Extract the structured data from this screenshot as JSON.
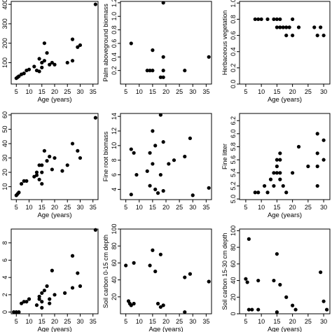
{
  "chart_data": [
    {
      "type": "scatter",
      "ylabel": "",
      "xlabel": "Age (years)",
      "xlim": [
        3,
        37
      ],
      "ylim": [
        -10,
        415
      ],
      "xticks": [
        5,
        10,
        15,
        20,
        25,
        30,
        35
      ],
      "yticks": [
        100,
        200,
        300,
        400
      ],
      "points": [
        [
          5,
          20
        ],
        [
          5.5,
          25
        ],
        [
          6,
          30
        ],
        [
          7,
          40
        ],
        [
          8,
          45
        ],
        [
          9,
          60
        ],
        [
          10,
          65
        ],
        [
          12,
          80
        ],
        [
          13,
          60
        ],
        [
          14,
          120
        ],
        [
          14,
          55
        ],
        [
          15,
          100
        ],
        [
          15,
          75
        ],
        [
          16,
          110
        ],
        [
          16,
          200
        ],
        [
          17,
          150
        ],
        [
          18,
          90
        ],
        [
          19,
          100
        ],
        [
          20,
          90
        ],
        [
          25,
          100
        ],
        [
          27,
          110
        ],
        [
          27,
          220
        ],
        [
          29,
          180
        ],
        [
          30,
          190
        ],
        [
          36,
          400
        ]
      ]
    },
    {
      "type": "scatter",
      "ylabel": "Palm aboveground biomass",
      "xlabel": "",
      "xlim": [
        3,
        37
      ],
      "ylim": [
        0,
        1.22
      ],
      "xticks": [
        5,
        10,
        15,
        20,
        25,
        30,
        35
      ],
      "yticks": [
        0.2,
        0.4,
        0.6,
        0.8,
        1.0,
        1.2
      ],
      "points": [
        [
          7,
          0.6
        ],
        [
          13,
          0.2
        ],
        [
          14,
          0.2
        ],
        [
          15,
          0.5
        ],
        [
          15,
          0.2
        ],
        [
          18,
          0.1
        ],
        [
          19,
          0.4
        ],
        [
          19,
          0.2
        ],
        [
          19,
          0.1
        ],
        [
          19,
          1.2
        ],
        [
          27,
          0.2
        ],
        [
          36,
          0.4
        ]
      ]
    },
    {
      "type": "scatter",
      "ylabel": "Herbaceous vegetation",
      "xlabel": "Age (years)",
      "xlim": [
        3,
        32
      ],
      "ylim": [
        0,
        1.02
      ],
      "xticks": [
        5,
        10,
        15,
        20,
        25,
        30
      ],
      "yticks": [
        0.0,
        0.2,
        0.4,
        0.6,
        0.8,
        1.0
      ],
      "points": [
        [
          8,
          0.8
        ],
        [
          9,
          0.8
        ],
        [
          10,
          0.8
        ],
        [
          12,
          0.8
        ],
        [
          14,
          0.8
        ],
        [
          15,
          0.8
        ],
        [
          15,
          0.7
        ],
        [
          16,
          0.7
        ],
        [
          16,
          0.8
        ],
        [
          17,
          0.7
        ],
        [
          18,
          0.6
        ],
        [
          18,
          0.7
        ],
        [
          19,
          0.7
        ],
        [
          20,
          0.6
        ],
        [
          20,
          0.8
        ],
        [
          22,
          0.7
        ],
        [
          27,
          0.7
        ],
        [
          28,
          0.6
        ],
        [
          29,
          0.7
        ],
        [
          30,
          0.6
        ]
      ]
    },
    {
      "type": "scatter",
      "ylabel": "",
      "xlabel": "Age (years)",
      "xlim": [
        3,
        37
      ],
      "ylim": [
        1,
        61
      ],
      "xticks": [
        5,
        10,
        15,
        20,
        25,
        30,
        35
      ],
      "yticks": [
        10,
        20,
        30,
        40,
        50,
        60
      ],
      "points": [
        [
          5,
          4
        ],
        [
          5.5,
          5
        ],
        [
          6,
          6
        ],
        [
          7,
          12
        ],
        [
          8,
          14
        ],
        [
          9,
          14
        ],
        [
          12,
          17
        ],
        [
          13,
          18
        ],
        [
          13,
          20
        ],
        [
          14,
          25
        ],
        [
          14,
          15
        ],
        [
          15,
          12
        ],
        [
          15,
          20
        ],
        [
          15,
          25
        ],
        [
          16,
          35
        ],
        [
          17,
          28
        ],
        [
          18,
          31
        ],
        [
          19,
          22
        ],
        [
          20,
          30
        ],
        [
          23,
          21
        ],
        [
          25,
          25
        ],
        [
          27,
          40
        ],
        [
          29,
          35
        ],
        [
          30,
          30
        ],
        [
          36,
          58
        ]
      ]
    },
    {
      "type": "scatter",
      "ylabel": "Fine root biomass",
      "xlabel": "",
      "xlim": [
        3,
        37
      ],
      "ylim": [
        2.6,
        14.4
      ],
      "xticks": [
        5,
        10,
        15,
        20,
        25,
        30,
        35
      ],
      "yticks": [
        4,
        6,
        8,
        10,
        12,
        14
      ],
      "points": [
        [
          7,
          9.5
        ],
        [
          8,
          9
        ],
        [
          9,
          6
        ],
        [
          13,
          6.5
        ],
        [
          14,
          9
        ],
        [
          14,
          4.5
        ],
        [
          15,
          12
        ],
        [
          15,
          7.5
        ],
        [
          16,
          10
        ],
        [
          16,
          4
        ],
        [
          17,
          3.5
        ],
        [
          18,
          14.2
        ],
        [
          18,
          6
        ],
        [
          19,
          3.8
        ],
        [
          19,
          10.5
        ],
        [
          21,
          7.5
        ],
        [
          23,
          8
        ],
        [
          27,
          8.5
        ],
        [
          29,
          11
        ],
        [
          30,
          3.2
        ],
        [
          36,
          4.2
        ],
        [
          7,
          3.3
        ]
      ]
    },
    {
      "type": "scatter",
      "ylabel": "Fine litter",
      "xlabel": "Age (years)",
      "xlim": [
        3,
        32
      ],
      "ylim": [
        4.99,
        6.31
      ],
      "xticks": [
        5,
        10,
        15,
        20,
        25,
        30
      ],
      "yticks": [
        5.0,
        5.2,
        5.4,
        5.6,
        5.8,
        6.0,
        6.2
      ],
      "points": [
        [
          8,
          5.1
        ],
        [
          9,
          5.1
        ],
        [
          11,
          5.2
        ],
        [
          12,
          5.1
        ],
        [
          13,
          5.3
        ],
        [
          14,
          5.2
        ],
        [
          14,
          5.4
        ],
        [
          15,
          5.4
        ],
        [
          15,
          5.5
        ],
        [
          15,
          5.6
        ],
        [
          16,
          5.4
        ],
        [
          16,
          5.6
        ],
        [
          16,
          5.7
        ],
        [
          17,
          5.2
        ],
        [
          18,
          5.1
        ],
        [
          20,
          5.4
        ],
        [
          22,
          5.8
        ],
        [
          25,
          5.5
        ],
        [
          28,
          5.2
        ],
        [
          28,
          5.5
        ],
        [
          28,
          5.7
        ],
        [
          28,
          6.0
        ],
        [
          30,
          5.9
        ],
        [
          30,
          5.6
        ],
        [
          16,
          5.3
        ]
      ]
    },
    {
      "type": "scatter",
      "ylabel": "",
      "xlabel": "Age (years)",
      "xlim": [
        3,
        37
      ],
      "ylim": [
        -0.2,
        9.6
      ],
      "xticks": [
        5,
        10,
        15,
        20,
        25,
        30,
        35
      ],
      "yticks": [
        0,
        2,
        4,
        6,
        8
      ],
      "points": [
        [
          4,
          0
        ],
        [
          5,
          0
        ],
        [
          6,
          0
        ],
        [
          7,
          1
        ],
        [
          8,
          1.2
        ],
        [
          9,
          1.2
        ],
        [
          10,
          1.5
        ],
        [
          13,
          0.8
        ],
        [
          14,
          1.8
        ],
        [
          14,
          1.5
        ],
        [
          15,
          2.2
        ],
        [
          15,
          1.2
        ],
        [
          15,
          0.5
        ],
        [
          16,
          2.5
        ],
        [
          17,
          3
        ],
        [
          18,
          1
        ],
        [
          18,
          1.5
        ],
        [
          19,
          4.8
        ],
        [
          20,
          2
        ],
        [
          24,
          2.2
        ],
        [
          27,
          2.8
        ],
        [
          27,
          6.5
        ],
        [
          29,
          4.5
        ],
        [
          30,
          3
        ],
        [
          36,
          9.5
        ]
      ]
    },
    {
      "type": "scatter",
      "ylabel": "Soil carbon 0-15 cm depth",
      "xlabel": "Age (years)",
      "xlim": [
        3,
        37
      ],
      "ylim": [
        0,
        100
      ],
      "xticks": [
        5,
        10,
        15,
        20,
        25,
        30,
        35
      ],
      "yticks": [
        20,
        40,
        60,
        80,
        100
      ],
      "points": [
        [
          5,
          57
        ],
        [
          6,
          15
        ],
        [
          6.5,
          12
        ],
        [
          7,
          10
        ],
        [
          8,
          60
        ],
        [
          8,
          12
        ],
        [
          14,
          57
        ],
        [
          15,
          75
        ],
        [
          16,
          50
        ],
        [
          17,
          12
        ],
        [
          18,
          70
        ],
        [
          18,
          8
        ],
        [
          19,
          10
        ],
        [
          27,
          2
        ],
        [
          27,
          43
        ],
        [
          29,
          47
        ],
        [
          36,
          38
        ]
      ]
    },
    {
      "type": "scatter",
      "ylabel": "Soil carbon 15-30 cm depth",
      "xlabel": "Age (years)",
      "xlim": [
        3,
        32
      ],
      "ylim": [
        0,
        102
      ],
      "xticks": [
        5,
        10,
        15,
        20,
        25,
        30
      ],
      "yticks": [
        0,
        20,
        40,
        60,
        80,
        100
      ],
      "points": [
        [
          5,
          42
        ],
        [
          5.5,
          38
        ],
        [
          6,
          90
        ],
        [
          6,
          5
        ],
        [
          7,
          5
        ],
        [
          9,
          40
        ],
        [
          9,
          5
        ],
        [
          14,
          40
        ],
        [
          15,
          72
        ],
        [
          15,
          2
        ],
        [
          16,
          35
        ],
        [
          18,
          20
        ],
        [
          20,
          10
        ],
        [
          21,
          5
        ],
        [
          29,
          50
        ],
        [
          30,
          15
        ],
        [
          31,
          5
        ]
      ]
    }
  ]
}
